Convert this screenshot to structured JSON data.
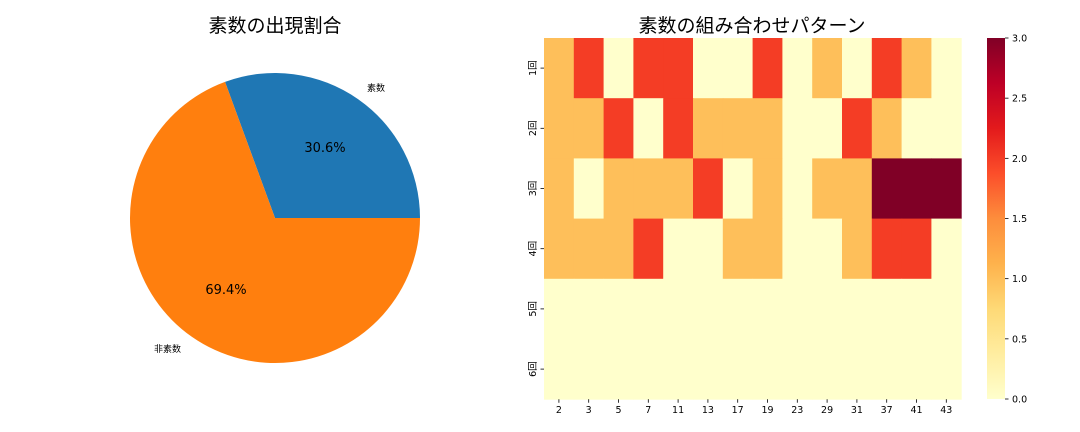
{
  "chart_data": [
    {
      "type": "pie",
      "title": "素数の出現割合",
      "labels": [
        "素数",
        "非素数"
      ],
      "values": [
        30.6,
        69.4
      ],
      "autopct_labels": [
        "30.6%",
        "69.4%"
      ],
      "colors": [
        "#1f77b4",
        "#ff7f0e"
      ],
      "startangle": 0,
      "direction": "counterclockwise"
    },
    {
      "type": "heatmap",
      "title": "素数の組み合わせパターン",
      "x_categories": [
        "2",
        "3",
        "5",
        "7",
        "11",
        "13",
        "17",
        "19",
        "23",
        "29",
        "31",
        "37",
        "41",
        "43"
      ],
      "y_categories": [
        "1回",
        "2回",
        "3回",
        "4回",
        "5回",
        "6回"
      ],
      "values": [
        [
          1,
          2,
          0,
          2,
          2,
          0,
          0,
          2,
          0,
          1,
          0,
          2,
          1,
          0
        ],
        [
          1,
          1,
          2,
          0,
          2,
          1,
          1,
          1,
          0,
          0,
          2,
          1,
          0,
          0
        ],
        [
          1,
          0,
          1,
          1,
          1,
          2,
          0,
          1,
          0,
          1,
          1,
          3,
          3,
          3
        ],
        [
          1,
          1,
          1,
          2,
          0,
          0,
          1,
          1,
          0,
          0,
          1,
          2,
          2,
          0
        ],
        [
          0,
          0,
          0,
          0,
          0,
          0,
          0,
          0,
          0,
          0,
          0,
          0,
          0,
          0
        ],
        [
          0,
          0,
          0,
          0,
          0,
          0,
          0,
          0,
          0,
          0,
          0,
          0,
          0,
          0
        ]
      ],
      "colormap": "YlOrRd",
      "vmin": 0,
      "vmax": 3,
      "colorbar_ticks": [
        "0.0",
        "0.5",
        "1.0",
        "1.5",
        "2.0",
        "2.5",
        "3.0"
      ],
      "xlabel": "",
      "ylabel": ""
    }
  ]
}
